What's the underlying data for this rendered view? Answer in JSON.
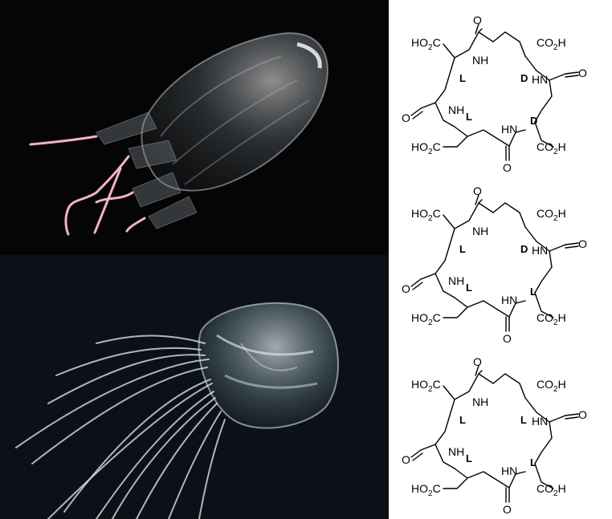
{
  "structures": [
    {
      "stereo": [
        "L",
        "D",
        "L",
        "D"
      ],
      "groups": {
        "acid": "HO",
        "acid_sub": "2",
        "acid_tail": "C",
        "carboxyl": "CO",
        "carboxyl_sub": "2",
        "carboxyl_tail": "H",
        "amide": "NH",
        "amide_rev": "HN",
        "oxygen": "O"
      }
    },
    {
      "stereo": [
        "L",
        "D",
        "L",
        "L"
      ],
      "groups": {
        "acid": "HO",
        "acid_sub": "2",
        "acid_tail": "C",
        "carboxyl": "CO",
        "carboxyl_sub": "2",
        "carboxyl_tail": "H",
        "amide": "NH",
        "amide_rev": "HN",
        "oxygen": "O"
      }
    },
    {
      "stereo": [
        "L",
        "L",
        "L",
        "L"
      ],
      "groups": {
        "acid": "HO",
        "acid_sub": "2",
        "acid_tail": "C",
        "carboxyl": "CO",
        "carboxyl_sub": "2",
        "carboxyl_tail": "H",
        "amide": "NH",
        "amide_rev": "HN",
        "oxygen": "O"
      }
    }
  ],
  "colors": {
    "tentacle_pink": "#f2b3c4",
    "bell": "#d8e4ea",
    "bottom_bg": "#0b1116"
  }
}
